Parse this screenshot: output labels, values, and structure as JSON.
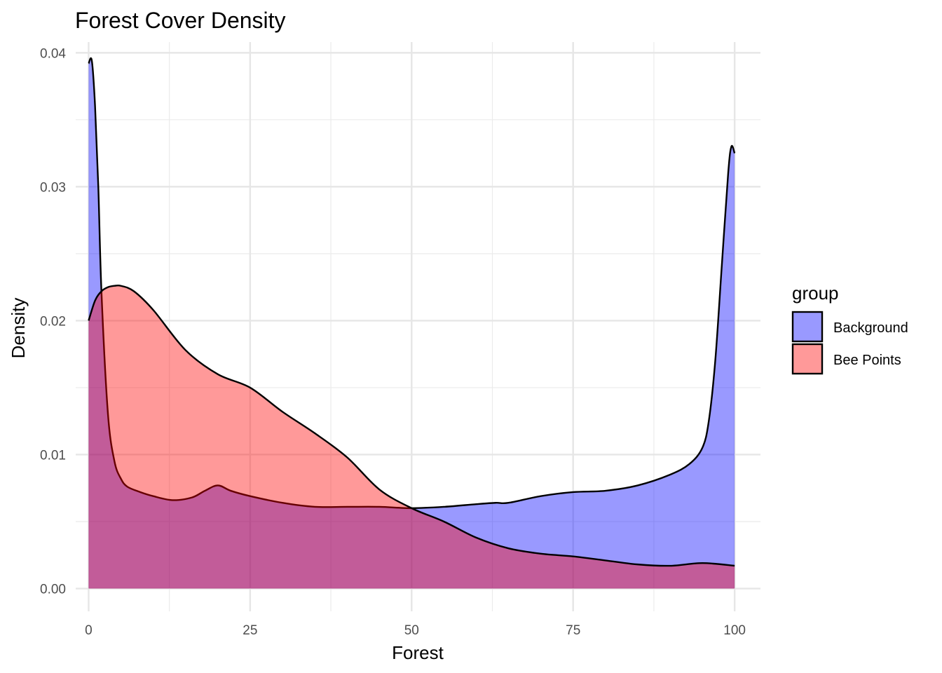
{
  "chart_data": {
    "type": "area",
    "title": "Forest Cover Density",
    "xlabel": "Forest",
    "ylabel": "Density",
    "xlim": [
      -2,
      104
    ],
    "ylim": [
      -0.0017,
      0.0408
    ],
    "xticks": [
      0,
      25,
      50,
      75,
      100
    ],
    "xtick_labels": [
      "0",
      "25",
      "50",
      "75",
      "100"
    ],
    "yticks": [
      0.0,
      0.01,
      0.02,
      0.03,
      0.04
    ],
    "ytick_labels": [
      "0.00",
      "0.01",
      "0.02",
      "0.03",
      "0.04"
    ],
    "grid": true,
    "legend": {
      "title": "group",
      "position": "right"
    },
    "series": [
      {
        "name": "Background",
        "color": "#0000ff",
        "x": [
          0,
          0.5,
          1,
          1.5,
          2,
          3,
          4,
          5,
          6,
          8,
          10,
          13,
          16,
          18,
          20,
          22,
          25,
          30,
          35,
          40,
          45,
          50,
          55,
          60,
          63,
          65,
          70,
          75,
          80,
          85,
          90,
          93,
          95,
          96,
          97,
          98,
          99,
          99.5,
          100
        ],
        "y": [
          0.0392,
          0.0394,
          0.036,
          0.03,
          0.022,
          0.013,
          0.0095,
          0.0082,
          0.0076,
          0.0072,
          0.0069,
          0.0066,
          0.0068,
          0.0073,
          0.0077,
          0.0073,
          0.0069,
          0.0064,
          0.0061,
          0.0061,
          0.0061,
          0.006,
          0.0061,
          0.0063,
          0.0064,
          0.0064,
          0.0069,
          0.0072,
          0.0073,
          0.0077,
          0.0085,
          0.0093,
          0.0105,
          0.0125,
          0.017,
          0.024,
          0.031,
          0.033,
          0.0325
        ]
      },
      {
        "name": "Bee Points",
        "color": "#ff0000",
        "x": [
          0,
          1,
          2,
          3,
          4,
          5,
          7,
          10,
          15,
          20,
          25,
          30,
          35,
          40,
          45,
          50,
          55,
          60,
          65,
          70,
          75,
          80,
          85,
          90,
          95,
          100
        ],
        "y": [
          0.02,
          0.0215,
          0.0222,
          0.0225,
          0.0226,
          0.0226,
          0.0222,
          0.0208,
          0.0178,
          0.016,
          0.015,
          0.0132,
          0.0116,
          0.0098,
          0.0074,
          0.006,
          0.005,
          0.0038,
          0.003,
          0.0026,
          0.0024,
          0.0021,
          0.0018,
          0.0017,
          0.0019,
          0.0017
        ]
      }
    ]
  }
}
